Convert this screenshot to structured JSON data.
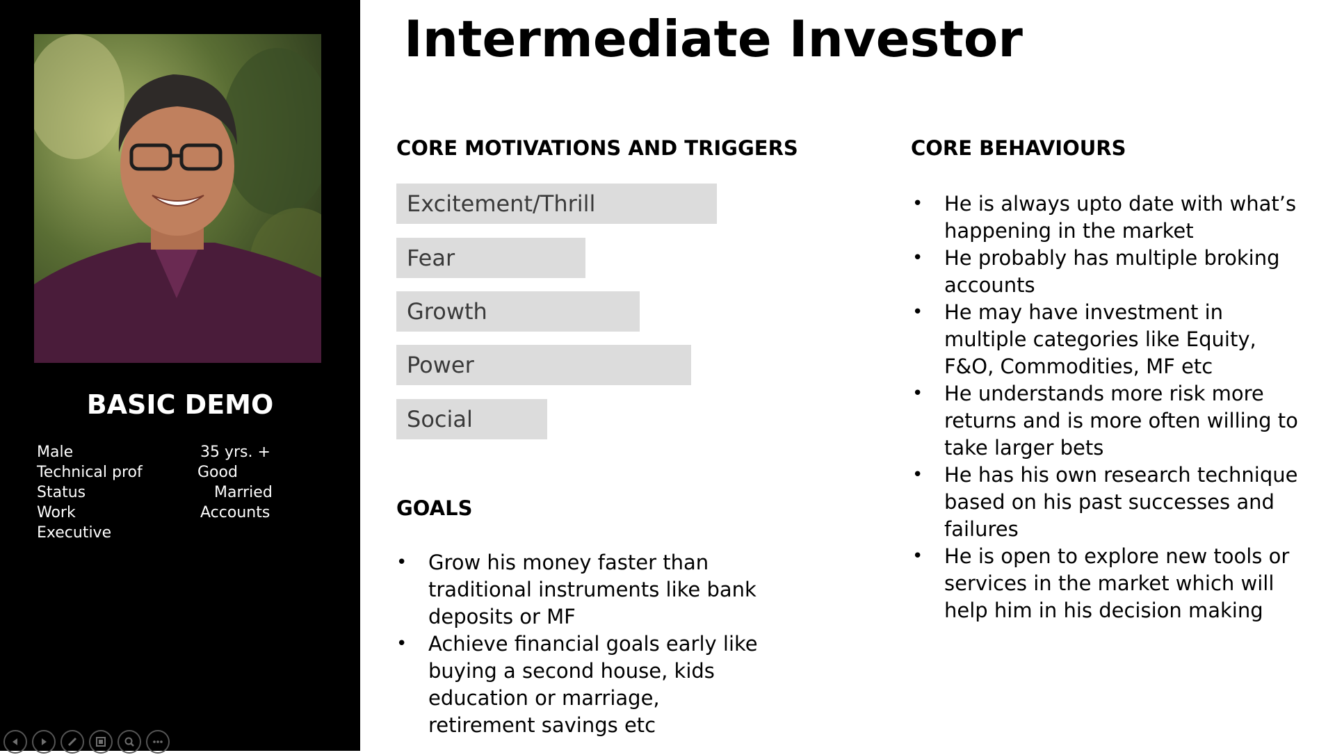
{
  "slide": {
    "title": "Intermediate Investor"
  },
  "left_panel": {
    "demo_title": "BASIC DEMO",
    "rows": {
      "r1": {
        "label": "Male",
        "value": "35 yrs. +"
      },
      "r2": {
        "label": "Technical prof",
        "value": "Good"
      },
      "r3": {
        "label": "Status",
        "value": "Married"
      },
      "r4": {
        "label": "Work",
        "value": "Accounts"
      },
      "r5": {
        "label": "Executive"
      }
    }
  },
  "motivations": {
    "heading": "CORE MOTIVATIONS AND TRIGGERS",
    "items": [
      {
        "label": "Excitement/Thrill",
        "level": 1.0
      },
      {
        "label": "Fear",
        "level": 0.59
      },
      {
        "label": "Growth",
        "level": 0.76
      },
      {
        "label": "Power",
        "level": 0.92
      },
      {
        "label": "Social",
        "level": 0.47
      }
    ]
  },
  "goals": {
    "heading": "GOALS",
    "items": [
      "Grow his money faster than traditional instruments like bank deposits or MF",
      "Achieve financial goals early like buying a second house, kids education or marriage, retirement savings etc"
    ]
  },
  "behaviours": {
    "heading": "CORE BEHAVIOURS",
    "items": [
      "He is always upto date with what’s happening in the market",
      "He probably has multiple broking accounts",
      "He may have investment in multiple categories like Equity, F&O, Commodities, MF etc",
      "He understands more risk more returns and is more often willing to take larger bets",
      "He has his own research technique based on his past successes and failures",
      "He is open to explore new tools or services in the market which will help him in his decision making"
    ]
  },
  "toolbar": {
    "icons": [
      "previous-slide-icon",
      "next-slide-icon",
      "pen-icon",
      "all-slides-icon",
      "zoom-icon",
      "more-options-icon"
    ]
  }
}
